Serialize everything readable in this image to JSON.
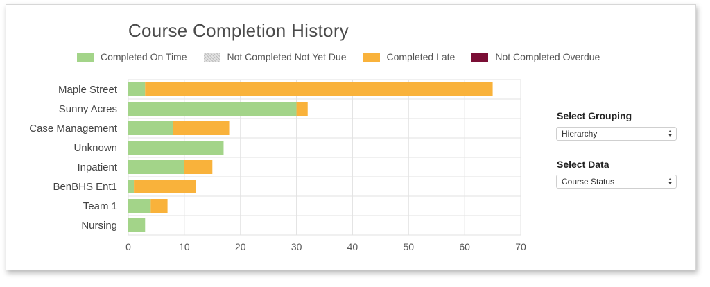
{
  "chart_data": {
    "type": "bar",
    "orientation": "horizontal",
    "stacked": true,
    "title": "Course Completion History",
    "categories": [
      "Maple Street",
      "Sunny Acres",
      "Case Management",
      "Unknown",
      "Inpatient",
      "BenBHS Ent1",
      "Team 1",
      "Nursing"
    ],
    "series": [
      {
        "name": "Completed On Time",
        "color": "#a3d489",
        "values": [
          3,
          30,
          8,
          17,
          10,
          1,
          4,
          3
        ]
      },
      {
        "name": "Not Completed Not Yet Due",
        "color": "#c9c9c9",
        "pattern": "hatched",
        "values": [
          0,
          0,
          0,
          0,
          0,
          0,
          0,
          0
        ]
      },
      {
        "name": "Completed Late",
        "color": "#f9b23b",
        "values": [
          62,
          2,
          10,
          0,
          5,
          11,
          3,
          0
        ]
      },
      {
        "name": "Not Completed Overdue",
        "color": "#7a0e35",
        "values": [
          0,
          0,
          0,
          0,
          0,
          0,
          0,
          0
        ]
      }
    ],
    "xlim": [
      0,
      70
    ],
    "xticks": [
      0,
      10,
      20,
      30,
      40,
      50,
      60,
      70
    ],
    "grid": true,
    "legend": "top"
  },
  "controls": {
    "grouping_label": "Select Grouping",
    "grouping_value": "Hierarchy",
    "data_label": "Select Data",
    "data_value": "Course Status"
  }
}
